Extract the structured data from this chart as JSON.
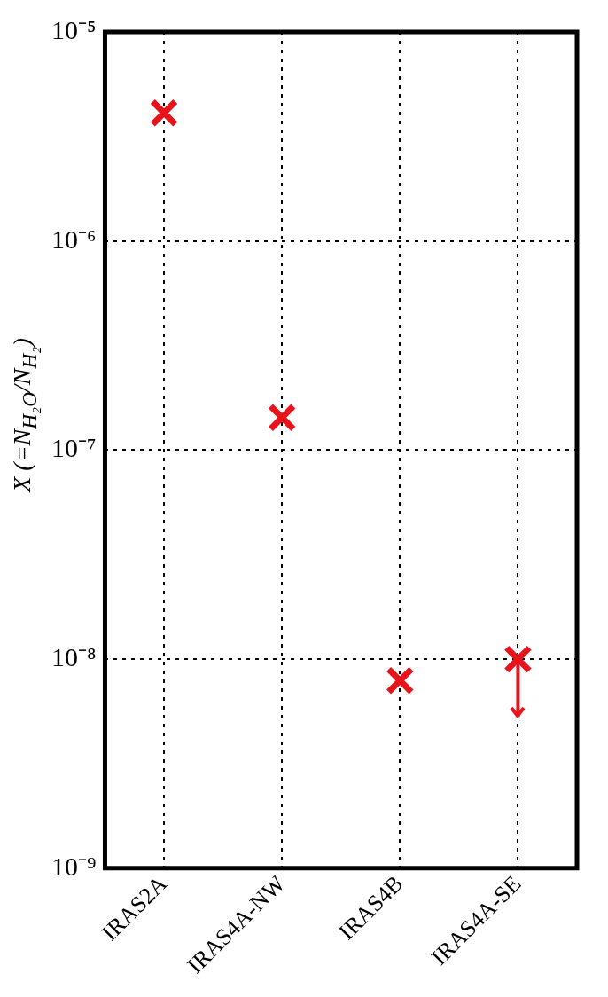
{
  "chart_data": {
    "type": "scatter",
    "ylabel": "X (=N$_{H₂O}$/N$_{H₂}$)",
    "categories": [
      "IRAS2A",
      "IRAS4A-NW",
      "IRAS4B",
      "IRAS4A-SE"
    ],
    "series": [
      {
        "color": "#e8141c",
        "values": [
          4.1e-06,
          1.43e-07,
          7.9e-09,
          1e-08
        ],
        "errors": [
          null,
          null,
          null,
          [
            5.3e-09,
            1e-08
          ]
        ]
      }
    ],
    "log": "y",
    "ylim": [
      1e-09,
      1e-05
    ],
    "yticks": [
      {
        "value": 1e-09,
        "label": "10⁻⁹"
      },
      {
        "value": 1e-08,
        "label": "10⁻⁸"
      },
      {
        "value": 1e-07,
        "label": "10⁻⁷"
      },
      {
        "value": 1e-06,
        "label": "10⁻⁶"
      },
      {
        "value": 1e-05,
        "label": "10⁻⁵"
      }
    ],
    "grid": true,
    "line_style": "dotted",
    "marker": "cross",
    "legend": false
  }
}
